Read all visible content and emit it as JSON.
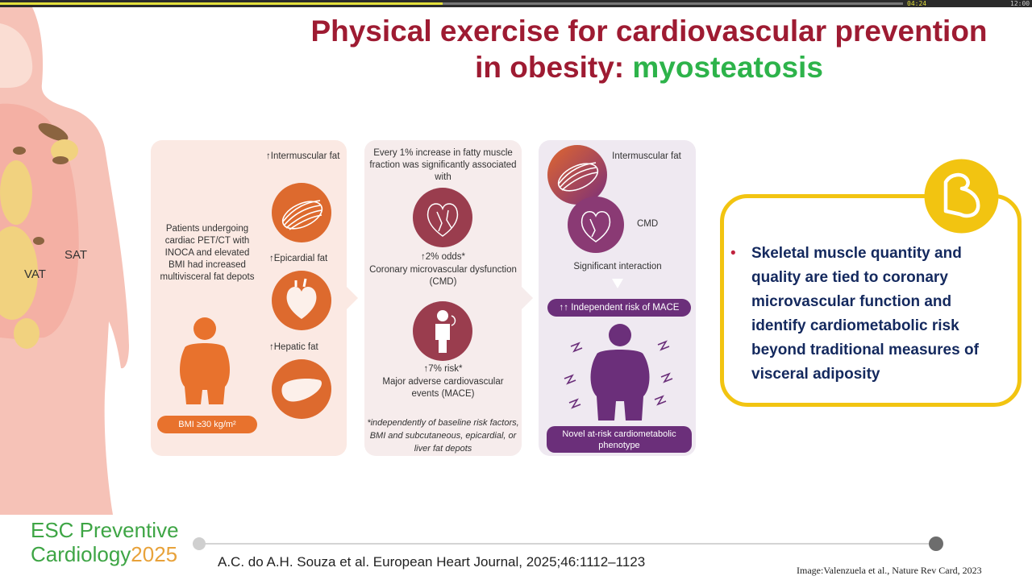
{
  "player": {
    "current_time": "04:24",
    "total_time": "12:00",
    "progress": 0.49
  },
  "title": {
    "line1": "Physical exercise for cardiovascular prevention",
    "line2_prefix": "in obesity:",
    "line2_highlight": "myosteatosis"
  },
  "body_labels": {
    "vat": "VAT",
    "sat": "SAT"
  },
  "figure": {
    "panel1": {
      "intermuscular": "Intermuscular fat",
      "epicardial": "Epicardial fat",
      "hepatic": "Hepatic fat",
      "patients_text": "Patients undergoing cardiac PET/CT with INOCA and elevated BMI had increased multivisceral fat depots",
      "bmi_pill": "BMI ≥30 kg/m²"
    },
    "panel2": {
      "intro": "Every 1% increase in fatty muscle fraction was significantly associated with",
      "odds": "2% odds*",
      "cmd": "Coronary microvascular dysfunction (CMD)",
      "risk": "7% risk*",
      "mace": "Major adverse cardiovascular events (MACE)",
      "footnote": "*independently of baseline risk factors, BMI and subcutaneous, epicardial, or liver fat depots"
    },
    "panel3": {
      "intermuscular": "Intermuscular fat",
      "cmd": "CMD",
      "interaction": "Significant interaction",
      "mace_pill": "Independent risk of MACE",
      "novel": "Novel at-risk cardiometabolic phenotype"
    }
  },
  "callout": {
    "text": "Skeletal muscle quantity and quality are tied to coronary microvascular function and identify cardiometabolic risk beyond traditional measures of visceral adiposity",
    "border_color": "#f2c411",
    "text_color": "#14295e"
  },
  "footer": {
    "brand_line1": "ESC Preventive",
    "brand_line2": "Cardiology",
    "brand_year": "2025",
    "citation": "A.C. do A.H. Souza et al. European Heart Journal, 2025;46:1112–1123",
    "image_credit": "Image:Valenzuela et al., Nature Rev Card, 2023"
  },
  "colors": {
    "title": "#9e1b32",
    "highlight": "#2db34a",
    "brand_green": "#3ea545",
    "brand_orange": "#e8a23a"
  }
}
